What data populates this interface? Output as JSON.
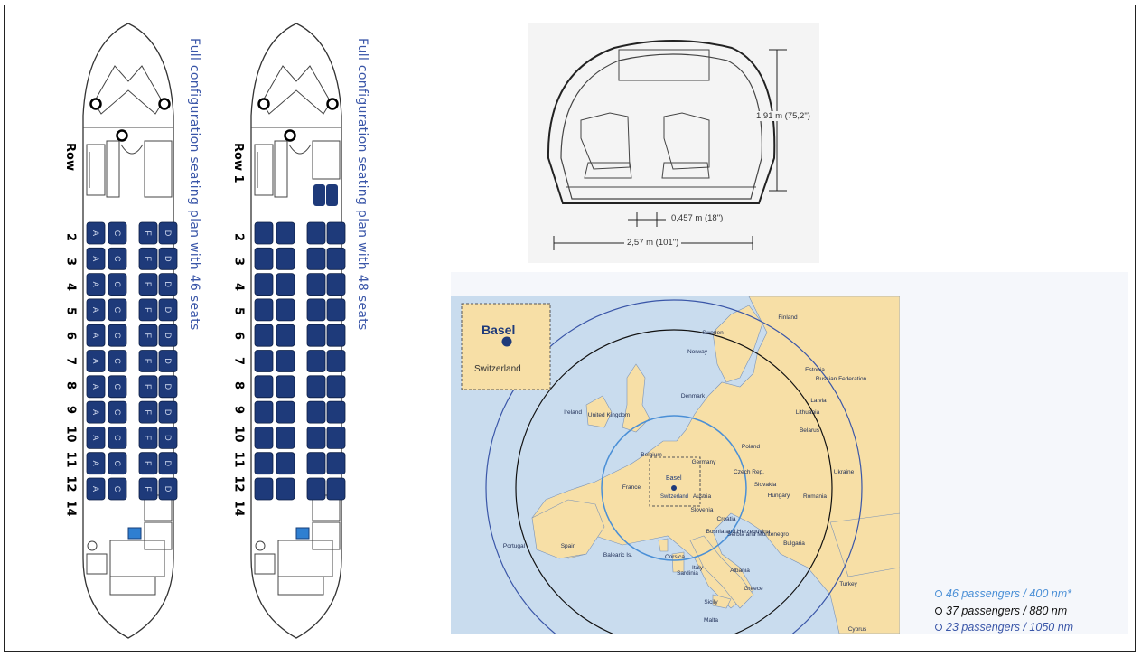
{
  "seating": {
    "plan_46": {
      "title": "Full configuration seating plan with 46 seats",
      "row_header": "Row",
      "rows": [
        "2",
        "3",
        "4",
        "5",
        "6",
        "7",
        "8",
        "9",
        "10",
        "11",
        "12",
        "14"
      ],
      "left_letters": [
        "C",
        "A"
      ],
      "right_letters": [
        "F",
        "D"
      ]
    },
    "plan_48": {
      "title": "Full configuration seating plan with 48 seats",
      "row_header": "Row 1",
      "rows": [
        "2",
        "3",
        "4",
        "5",
        "6",
        "7",
        "8",
        "9",
        "10",
        "11",
        "12",
        "14"
      ]
    },
    "seat_color": "#1e3a7a",
    "attendant_seat_color": "#2f7fd1"
  },
  "cross_section": {
    "height_label": "1,91 m (75,2\")",
    "aisle_label": "0,457 m (18\")",
    "width_label": "2,57 m (101\")"
  },
  "map": {
    "inset": {
      "city": "Basel",
      "country": "Switzerland"
    },
    "center": {
      "city": "Basel",
      "country": "Switzerland"
    },
    "countries": [
      "Sweden",
      "Finland",
      "Norway",
      "Estonia",
      "Russian Federation",
      "Latvia",
      "Denmark",
      "Lithuania",
      "Ireland",
      "United Kingdom",
      "Belarus",
      "Belgium",
      "Germany",
      "Poland",
      "Czech Rep.",
      "Ukraine",
      "France",
      "Slovakia",
      "Austria",
      "Hungary",
      "Romania",
      "Slovenia",
      "Croatia",
      "Bosnia and Herzegovina",
      "Serbia and Montenegro",
      "Bulgaria",
      "Portugal",
      "Spain",
      "Balearic Is.",
      "Corsica",
      "Italy",
      "Sardinia",
      "Albania",
      "Greece",
      "Turkey",
      "Sicily",
      "Malta",
      "Cyprus"
    ],
    "water_color": "#c9dcee",
    "land_color": "#f7dfa6",
    "legend": [
      {
        "label": "46 passengers / 400 nm*",
        "color": "#4a8fd6"
      },
      {
        "label": "37 passengers / 880 nm",
        "color": "#111111"
      },
      {
        "label": "23 passengers / 1050 nm",
        "color": "#3a56a8"
      }
    ]
  }
}
